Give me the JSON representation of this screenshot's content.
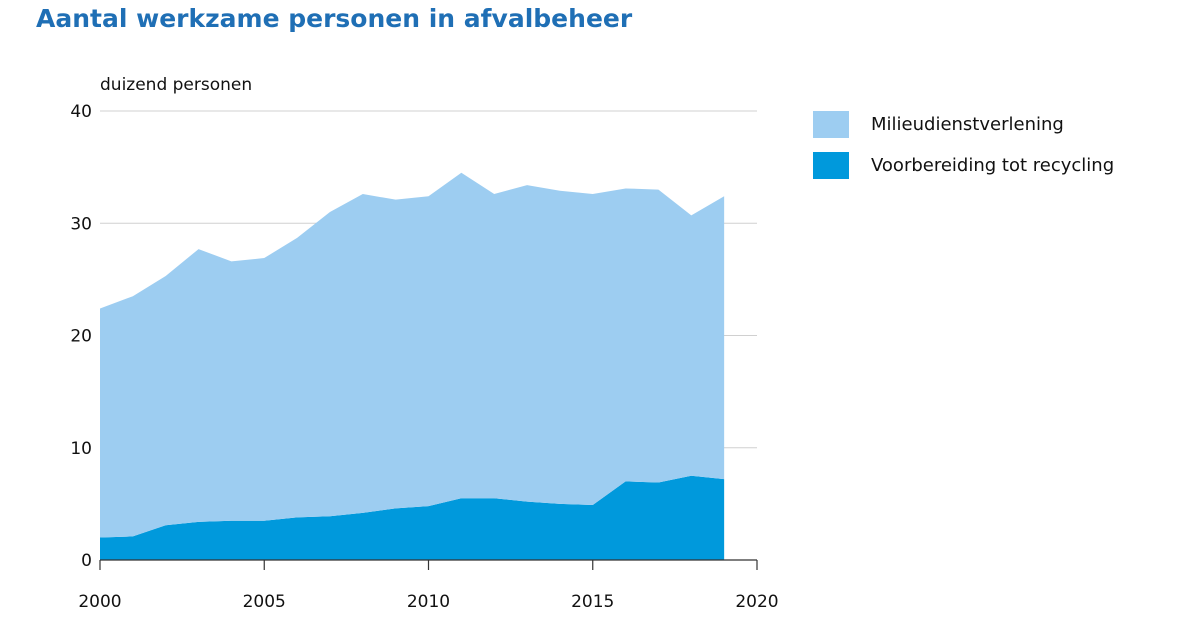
{
  "title": "Aantal werkzame personen in afvalbeheer",
  "colors": {
    "title": "#1f6fb5",
    "milieudienstverlening": "#9dcdf1",
    "voorbereiding": "#0099dc",
    "axis": "#333333",
    "grid": "#d0d0d0"
  },
  "chart_data": {
    "type": "area",
    "stacked": true,
    "title": "Aantal werkzame personen in afvalbeheer",
    "ylabel": "duizend personen",
    "xlabel": "",
    "xlim": [
      2000,
      2020
    ],
    "ylim": [
      0,
      40
    ],
    "x_ticks": [
      2000,
      2005,
      2010,
      2015,
      2020
    ],
    "y_ticks": [
      0,
      10,
      20,
      30,
      40
    ],
    "grid": "horizontal",
    "legend_position": "right",
    "x": [
      2000,
      2001,
      2002,
      2003,
      2004,
      2005,
      2006,
      2007,
      2008,
      2009,
      2010,
      2011,
      2012,
      2013,
      2014,
      2015,
      2016,
      2017,
      2018,
      2019
    ],
    "series": [
      {
        "name": "Voorbereiding tot recycling",
        "color": "#0099dc",
        "values": [
          2.0,
          2.1,
          3.1,
          3.4,
          3.5,
          3.5,
          3.8,
          3.9,
          4.2,
          4.6,
          4.8,
          5.5,
          5.5,
          5.2,
          5.0,
          4.9,
          7.0,
          6.9,
          7.5,
          7.2
        ]
      },
      {
        "name": "Milieudienstverlening",
        "color": "#9dcdf1",
        "values": [
          20.4,
          21.4,
          22.2,
          24.3,
          23.1,
          23.4,
          24.9,
          27.1,
          28.4,
          27.5,
          27.6,
          29.0,
          27.1,
          28.2,
          27.9,
          27.7,
          26.1,
          26.1,
          23.2,
          25.2
        ]
      }
    ]
  }
}
